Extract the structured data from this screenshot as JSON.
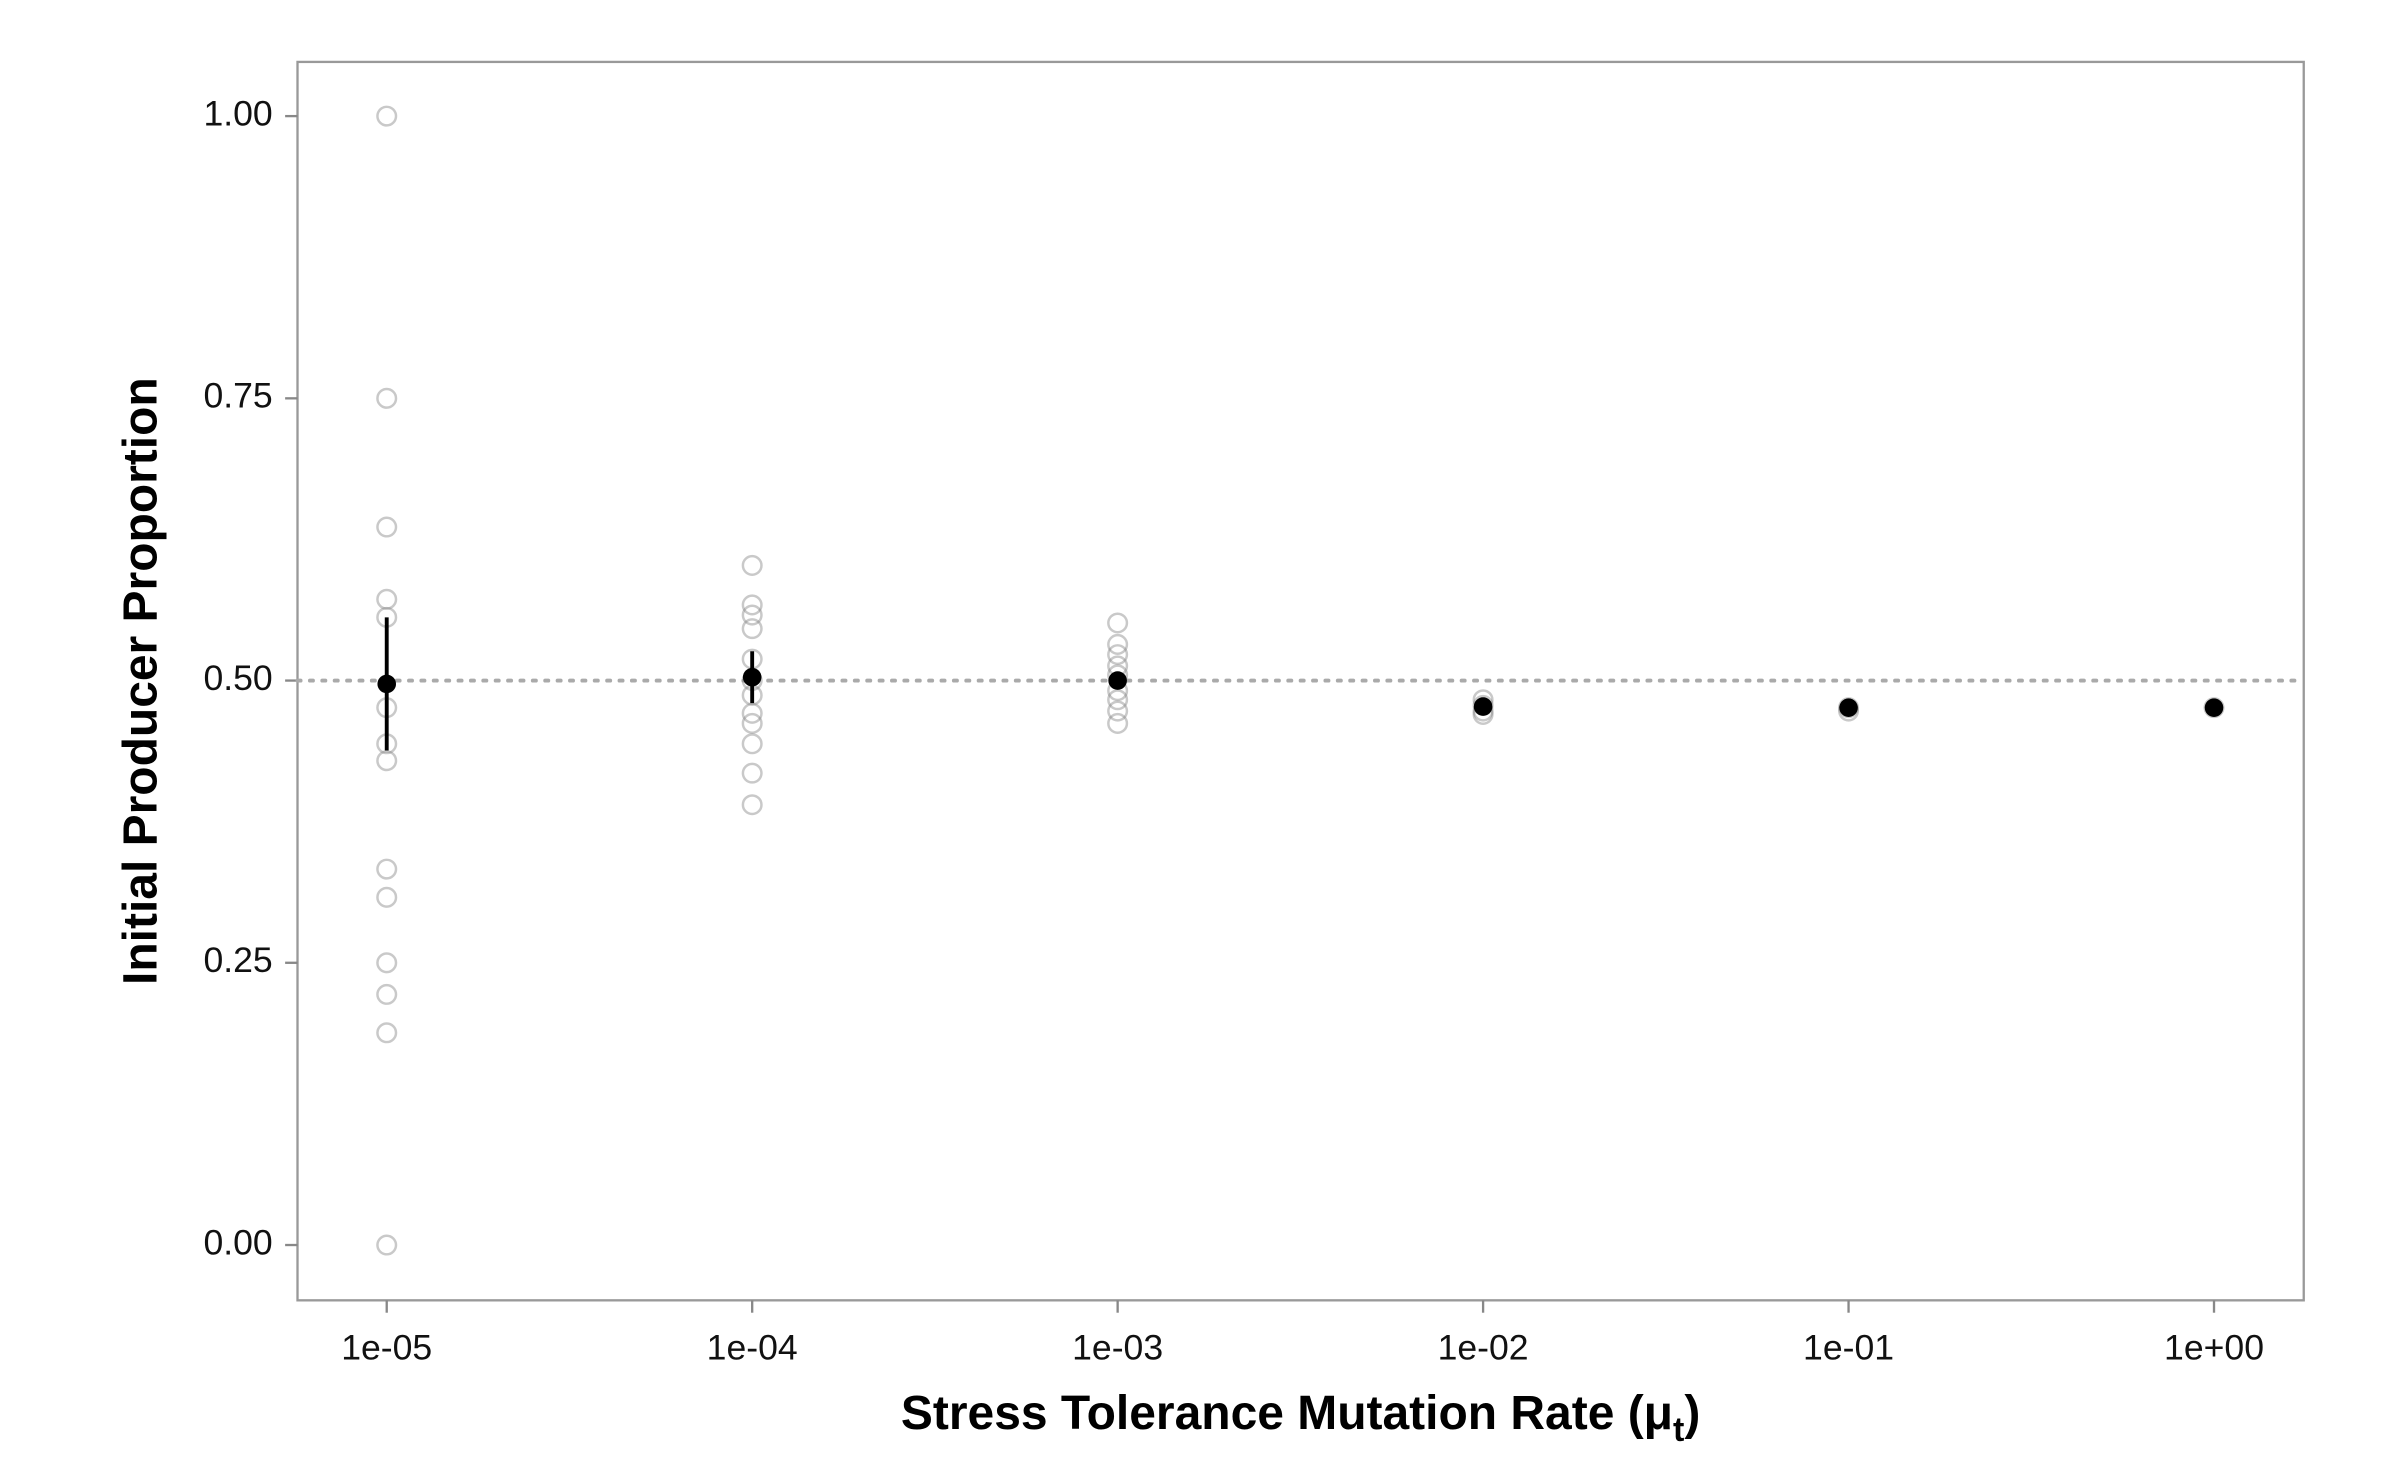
{
  "chart_data": {
    "type": "scatter",
    "x_label": [
      "Stress Tolerance Mutation Rate (μ",
      "t",
      ")"
    ],
    "y_label": "Initial Producer Proportion",
    "log_x": true,
    "xlim": [
      5.7e-06,
      1.76
    ],
    "xticks": [
      {
        "value": 1e-05,
        "label": "1e-05"
      },
      {
        "value": 0.0001,
        "label": "1e-04"
      },
      {
        "value": 0.001,
        "label": "1e-03"
      },
      {
        "value": 0.01,
        "label": "1e-02"
      },
      {
        "value": 0.1,
        "label": "1e-01"
      },
      {
        "value": 1,
        "label": "1e+00"
      }
    ],
    "ylim": [
      -0.049,
      1.048
    ],
    "yticks": [
      {
        "value": 0,
        "label": "0.00"
      },
      {
        "value": 0.25,
        "label": "0.25"
      },
      {
        "value": 0.5,
        "label": "0.50"
      },
      {
        "value": 0.75,
        "label": "0.75"
      },
      {
        "value": 1,
        "label": "1.00"
      }
    ],
    "reference_line": 0.5,
    "reference_color": "#aaaaaa",
    "replicates": {
      "color": "#888888",
      "x": [
        1e-05,
        1e-05,
        1e-05,
        1e-05,
        1e-05,
        1e-05,
        1e-05,
        1e-05,
        1e-05,
        1e-05,
        1e-05,
        1e-05,
        1e-05,
        1e-05,
        0.0001,
        0.0001,
        0.0001,
        0.0001,
        0.0001,
        0.0001,
        0.0001,
        0.0001,
        0.0001,
        0.0001,
        0.0001,
        0.0001,
        0.001,
        0.001,
        0.001,
        0.001,
        0.001,
        0.001,
        0.001,
        0.001,
        0.001,
        0.01,
        0.01,
        0.01,
        0.01,
        0.1,
        0.1,
        1
      ],
      "y": [
        1.0,
        0.75,
        0.636,
        0.572,
        0.556,
        0.476,
        0.444,
        0.429,
        0.333,
        0.308,
        0.25,
        0.222,
        0.188,
        0.0,
        0.602,
        0.567,
        0.558,
        0.546,
        0.519,
        0.5,
        0.487,
        0.471,
        0.462,
        0.444,
        0.418,
        0.39,
        0.551,
        0.532,
        0.523,
        0.513,
        0.505,
        0.491,
        0.483,
        0.473,
        0.462,
        0.483,
        0.478,
        0.473,
        0.47,
        0.476,
        0.473,
        0.476
      ]
    },
    "means": {
      "color": "#000000",
      "x": [
        1e-05,
        0.0001,
        0.001,
        0.01,
        0.1,
        1
      ],
      "y": [
        0.497,
        0.503,
        0.5,
        0.477,
        0.476,
        0.476
      ],
      "error": [
        0.059,
        0.023,
        0.005,
        0.002,
        0.002,
        0.001
      ]
    }
  }
}
